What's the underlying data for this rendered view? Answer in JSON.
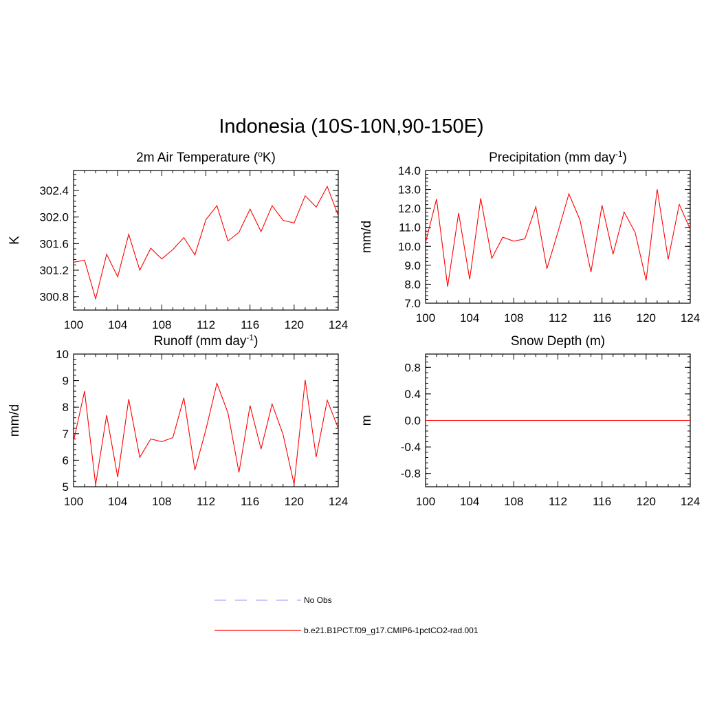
{
  "title": "Indonesia (10S-10N,90-150E)",
  "colors": {
    "model": "#ff0000",
    "obs": "#aaaaff"
  },
  "legend": [
    {
      "label": "No Obs",
      "style": "dashed",
      "color": "#aaaaff"
    },
    {
      "label": "b.e21.B1PCT.f09_g17.CMIP6-1pctCO2-rad.001",
      "style": "solid",
      "color": "#ff0000"
    }
  ],
  "chart_data": [
    {
      "type": "line",
      "title": "2m Air Temperature (oK)",
      "title_main": "2m Air Temperature (",
      "title_sup_pre": "o",
      "title_after": "K)",
      "title_sup": "",
      "title_end": "",
      "xlabel": "",
      "ylabel": "K",
      "xlim": [
        100,
        124
      ],
      "ylim": [
        300.6,
        302.7
      ],
      "xticks": [
        "100",
        "104",
        "108",
        "112",
        "116",
        "120",
        "124"
      ],
      "yticks": [
        "300.8",
        "301.2",
        "301.6",
        "302.0",
        "302.4"
      ],
      "yticks_values": [
        300.8,
        301.2,
        301.6,
        302.0,
        302.4
      ],
      "x": [
        100,
        101,
        102,
        103,
        104,
        105,
        106,
        107,
        108,
        109,
        110,
        111,
        112,
        113,
        114,
        115,
        116,
        117,
        118,
        119,
        120,
        121,
        122,
        123,
        124
      ],
      "series": [
        {
          "name": "b.e21.B1PCT.f09_g17.CMIP6-1pctCO2-rad.001",
          "values": [
            301.32,
            301.35,
            300.77,
            301.44,
            301.1,
            301.74,
            301.2,
            301.53,
            301.37,
            301.51,
            301.69,
            301.43,
            301.96,
            302.17,
            301.64,
            301.77,
            302.12,
            301.78,
            302.17,
            301.95,
            301.91,
            302.32,
            302.15,
            302.46,
            302.02
          ]
        }
      ]
    },
    {
      "type": "line",
      "title": "Precipitation (mm day-1)",
      "title_main": "Precipitation (mm day",
      "title_sup_pre": "",
      "title_after": "",
      "title_sup": "-1",
      "title_end": ")",
      "xlabel": "",
      "ylabel": "mm/d",
      "xlim": [
        100,
        124
      ],
      "ylim": [
        7.0,
        14.0
      ],
      "xticks": [
        "100",
        "104",
        "108",
        "112",
        "116",
        "120",
        "124"
      ],
      "yticks": [
        "7.0",
        "8.0",
        "9.0",
        "10.0",
        "11.0",
        "12.0",
        "13.0",
        "14.0"
      ],
      "yticks_values": [
        7,
        8,
        9,
        10,
        11,
        12,
        13,
        14
      ],
      "x": [
        100,
        101,
        102,
        103,
        104,
        105,
        106,
        107,
        108,
        109,
        110,
        111,
        112,
        113,
        114,
        115,
        116,
        117,
        118,
        119,
        120,
        121,
        122,
        123,
        124
      ],
      "series": [
        {
          "name": "b.e21.B1PCT.f09_g17.CMIP6-1pctCO2-rad.001",
          "values": [
            10.2,
            12.5,
            7.87,
            11.76,
            8.26,
            12.53,
            9.37,
            10.48,
            10.27,
            10.39,
            12.09,
            8.82,
            10.75,
            12.77,
            11.39,
            8.64,
            12.17,
            9.58,
            11.81,
            10.74,
            8.2,
            13.01,
            9.31,
            12.21,
            10.9
          ]
        }
      ]
    },
    {
      "type": "line",
      "title": "Runoff (mm day-1)",
      "title_main": "Runoff (mm day",
      "title_sup_pre": "",
      "title_after": "",
      "title_sup": "-1",
      "title_end": ")",
      "xlabel": "",
      "ylabel": "mm/d",
      "xlim": [
        100,
        124
      ],
      "ylim": [
        5,
        10
      ],
      "xticks": [
        "100",
        "104",
        "108",
        "112",
        "116",
        "120",
        "124"
      ],
      "yticks": [
        "5",
        "6",
        "7",
        "8",
        "9",
        "10"
      ],
      "yticks_values": [
        5,
        6,
        7,
        8,
        9,
        10
      ],
      "x": [
        100,
        101,
        102,
        103,
        104,
        105,
        106,
        107,
        108,
        109,
        110,
        111,
        112,
        113,
        114,
        115,
        116,
        117,
        118,
        119,
        120,
        121,
        122,
        123,
        124
      ],
      "series": [
        {
          "name": "b.e21.B1PCT.f09_g17.CMIP6-1pctCO2-rad.001",
          "values": [
            6.72,
            8.6,
            5.07,
            7.7,
            5.36,
            8.3,
            6.11,
            6.8,
            6.7,
            6.85,
            8.35,
            5.63,
            7.15,
            8.9,
            7.78,
            5.54,
            8.06,
            6.42,
            8.12,
            6.96,
            5.09,
            9.02,
            6.12,
            8.26,
            7.2
          ]
        }
      ]
    },
    {
      "type": "line",
      "title": "Snow Depth (m)",
      "title_main": "Snow Depth (m)",
      "title_sup_pre": "",
      "title_after": "",
      "title_sup": "",
      "title_end": "",
      "xlabel": "",
      "ylabel": "m",
      "xlim": [
        100,
        124
      ],
      "ylim": [
        -1.0,
        1.0
      ],
      "xticks": [
        "100",
        "104",
        "108",
        "112",
        "116",
        "120",
        "124"
      ],
      "yticks": [
        "-0.8",
        "-0.4",
        "0.0",
        "0.4",
        "0.8"
      ],
      "yticks_values": [
        -0.8,
        -0.4,
        0.0,
        0.4,
        0.8
      ],
      "x": [
        100,
        101,
        102,
        103,
        104,
        105,
        106,
        107,
        108,
        109,
        110,
        111,
        112,
        113,
        114,
        115,
        116,
        117,
        118,
        119,
        120,
        121,
        122,
        123,
        124
      ],
      "series": [
        {
          "name": "b.e21.B1PCT.f09_g17.CMIP6-1pctCO2-rad.001",
          "values": [
            0,
            0,
            0,
            0,
            0,
            0,
            0,
            0,
            0,
            0,
            0,
            0,
            0,
            0,
            0,
            0,
            0,
            0,
            0,
            0,
            0,
            0,
            0,
            0,
            0
          ]
        }
      ]
    }
  ]
}
